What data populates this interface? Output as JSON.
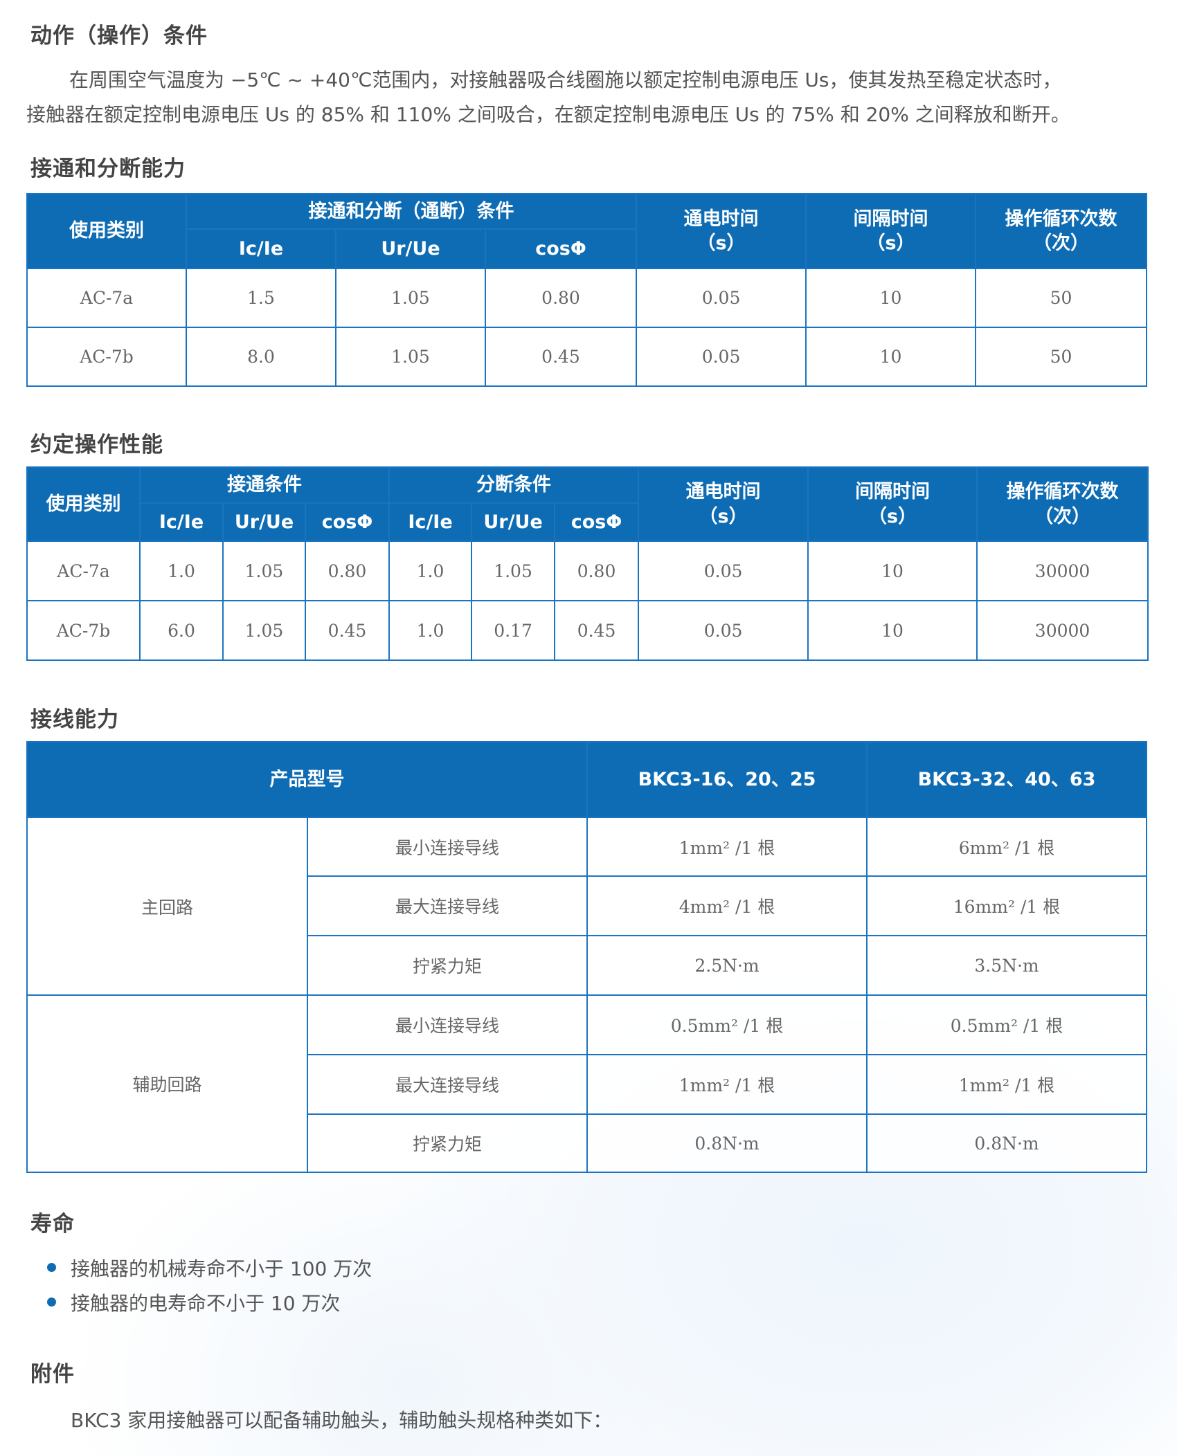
{
  "sections": {
    "operation": {
      "title": "动作（操作）条件",
      "lines": [
        "在周围空气温度为 −5℃ ~ +40℃范围内，对接触器吸合线圈施以额定控制电源电压 Us，使其发热至稳定状态时，",
        "接触器在额定控制电源电压 Us 的 85% 和 110% 之间吸合，在额定控制电源电压 Us 的 75% 和 20% 之间释放和断开。"
      ]
    },
    "making": {
      "title": "接通和分断能力",
      "headers": {
        "category": "使用类别",
        "conditions": "接通和分断（通断）条件",
        "ic_ie": "Ic/Ie",
        "ur_ue": "Ur/Ue",
        "cos": "cosΦ",
        "on_time": "通电时间",
        "on_time_unit": "（s）",
        "interval": "间隔时间",
        "interval_unit": "（s）",
        "cycles": "操作循环次数",
        "cycles_unit": "（次）"
      },
      "rows": [
        [
          "AC-7a",
          "1.5",
          "1.05",
          "0.80",
          "0.05",
          "10",
          "50"
        ],
        [
          "AC-7b",
          "8.0",
          "1.05",
          "0.45",
          "0.05",
          "10",
          "50"
        ]
      ]
    },
    "conventional": {
      "title": "约定操作性能",
      "headers": {
        "category": "使用类别",
        "make": "接通条件",
        "break": "分断条件",
        "ic_ie": "Ic/Ie",
        "ur_ue": "Ur/Ue",
        "cos": "cosΦ",
        "on_time": "通电时间",
        "on_time_unit": "（s）",
        "interval": "间隔时间",
        "interval_unit": "（s）",
        "cycles": "操作循环次数",
        "cycles_unit": "（次）"
      },
      "rows": [
        [
          "AC-7a",
          "1.0",
          "1.05",
          "0.80",
          "1.0",
          "1.05",
          "0.80",
          "0.05",
          "10",
          "30000"
        ],
        [
          "AC-7b",
          "6.0",
          "1.05",
          "0.45",
          "1.0",
          "0.17",
          "0.45",
          "0.05",
          "10",
          "30000"
        ]
      ]
    },
    "wiring": {
      "title": "接线能力",
      "headers": {
        "model": "产品型号",
        "col1": "BKC3-16、20、25",
        "col2": "BKC3-32、40、63"
      },
      "groups": [
        {
          "name": "主回路",
          "rows": [
            [
              "最小连接导线",
              "1mm² /1 根",
              "6mm² /1 根"
            ],
            [
              "最大连接导线",
              "4mm² /1 根",
              "16mm² /1 根"
            ],
            [
              "拧紧力矩",
              "2.5N·m",
              "3.5N·m"
            ]
          ]
        },
        {
          "name": "辅助回路",
          "rows": [
            [
              "最小连接导线",
              "0.5mm² /1 根",
              "0.5mm² /1 根"
            ],
            [
              "最大连接导线",
              "1mm² /1 根",
              "1mm² /1 根"
            ],
            [
              "拧紧力矩",
              "0.8N·m",
              "0.8N·m"
            ]
          ]
        }
      ]
    },
    "life": {
      "title": "寿命",
      "items": [
        "接触器的机械寿命不小于 100 万次",
        "接触器的电寿命不小于 10 万次"
      ]
    },
    "accessories": {
      "title": "附件",
      "text": "BKC3 家用接触器可以配备辅助触头，辅助触头规格种类如下："
    }
  },
  "colors": {
    "header_bg": "#0e6cb4",
    "border": "#1b74c1",
    "bullet": "#0e6cb4"
  }
}
